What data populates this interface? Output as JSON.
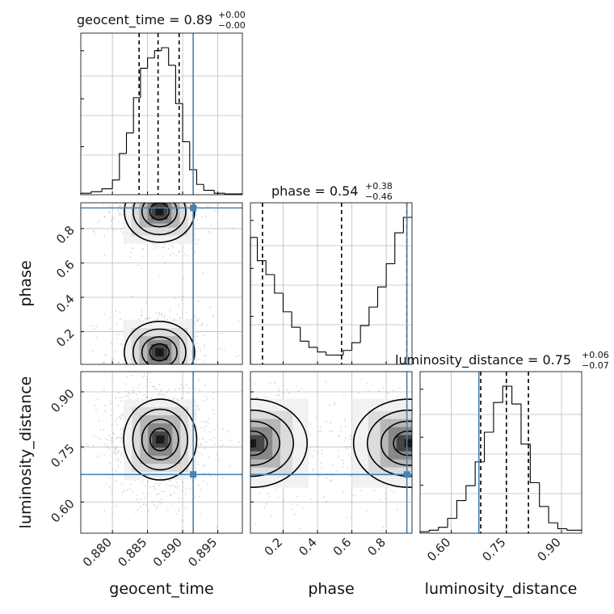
{
  "chart_data": {
    "type": "corner",
    "parameters": [
      "geocent_time",
      "phase",
      "luminosity_distance"
    ],
    "colors": {
      "truth": "#4682b4",
      "hist": "#000000",
      "points": "#888888"
    },
    "grid": true,
    "marginals": [
      {
        "name": "geocent_time",
        "title": {
          "param": "geocent_time",
          "value": "0.89",
          "plus": "+0.00",
          "minus": "−0.00"
        },
        "range": [
          0.8755,
          0.8985
        ],
        "ticks": [
          0.88,
          0.885,
          0.89,
          0.895
        ],
        "tick_labels": [
          "0.880",
          "0.885",
          "0.890",
          "0.895"
        ],
        "bin_edges": [
          0.8755,
          0.877,
          0.8785,
          0.88,
          0.881,
          0.882,
          0.883,
          0.884,
          0.885,
          0.886,
          0.887,
          0.888,
          0.889,
          0.89,
          0.891,
          0.892,
          0.893,
          0.8945,
          0.896,
          0.8985
        ],
        "counts": [
          0.01,
          0.02,
          0.04,
          0.1,
          0.28,
          0.42,
          0.66,
          0.86,
          0.93,
          0.98,
          1.0,
          0.88,
          0.62,
          0.36,
          0.17,
          0.07,
          0.03,
          0.01,
          0.005
        ],
        "quantiles": [
          0.8838,
          0.8865,
          0.8895
        ],
        "truth": 0.8915
      },
      {
        "name": "phase",
        "title": {
          "param": "phase",
          "value": "0.54",
          "plus": "+0.38",
          "minus": "−0.46"
        },
        "range": [
          0.01,
          0.95
        ],
        "ticks": [
          0.2,
          0.4,
          0.6,
          0.8
        ],
        "tick_labels": [
          "0.2",
          "0.4",
          "0.6",
          "0.8"
        ],
        "bin_edges": [
          0.01,
          0.05,
          0.1,
          0.15,
          0.2,
          0.25,
          0.3,
          0.35,
          0.4,
          0.45,
          0.5,
          0.55,
          0.6,
          0.65,
          0.7,
          0.75,
          0.8,
          0.85,
          0.9,
          0.95
        ],
        "counts": [
          0.82,
          0.67,
          0.58,
          0.46,
          0.34,
          0.24,
          0.15,
          0.11,
          0.08,
          0.06,
          0.06,
          0.09,
          0.14,
          0.25,
          0.37,
          0.5,
          0.65,
          0.85,
          0.95
        ],
        "quantiles": [
          0.08,
          0.54,
          0.92
        ],
        "truth": 0.92
      },
      {
        "name": "luminosity_distance",
        "title": {
          "param": "luminosity_distance",
          "value": "0.75",
          "plus": "+0.06",
          "minus": "−0.07"
        },
        "range": [
          0.515,
          0.955
        ],
        "ticks": [
          0.6,
          0.75,
          0.9
        ],
        "tick_labels": [
          "0.60",
          "0.75",
          "0.90"
        ],
        "bin_edges": [
          0.515,
          0.54,
          0.565,
          0.59,
          0.615,
          0.64,
          0.665,
          0.69,
          0.715,
          0.74,
          0.765,
          0.79,
          0.815,
          0.84,
          0.865,
          0.89,
          0.915,
          0.955
        ],
        "counts": [
          0.01,
          0.02,
          0.04,
          0.1,
          0.22,
          0.32,
          0.48,
          0.68,
          0.88,
          0.99,
          0.87,
          0.6,
          0.34,
          0.18,
          0.07,
          0.03,
          0.02
        ],
        "quantiles": [
          0.68,
          0.75,
          0.81
        ],
        "truth": 0.675
      }
    ],
    "joint": [
      {
        "x": "geocent_time",
        "y": "phase",
        "modes": [
          {
            "cx": 0.8867,
            "cy": 0.9,
            "sx": 0.0025,
            "sy": 0.09
          },
          {
            "cx": 0.8867,
            "cy": 0.08,
            "sx": 0.0025,
            "sy": 0.09
          }
        ],
        "truth": [
          0.8915,
          0.92
        ]
      },
      {
        "x": "geocent_time",
        "y": "luminosity_distance",
        "modes": [
          {
            "cx": 0.8868,
            "cy": 0.77,
            "sx": 0.0026,
            "sy": 0.055
          }
        ],
        "truth": [
          0.8915,
          0.675
        ]
      },
      {
        "x": "phase",
        "y": "luminosity_distance",
        "modes": [
          {
            "cx": 0.02,
            "cy": 0.76,
            "sx": 0.16,
            "sy": 0.06
          },
          {
            "cx": 0.93,
            "cy": 0.76,
            "sx": 0.16,
            "sy": 0.06
          }
        ],
        "truth": [
          0.92,
          0.675
        ]
      }
    ]
  }
}
